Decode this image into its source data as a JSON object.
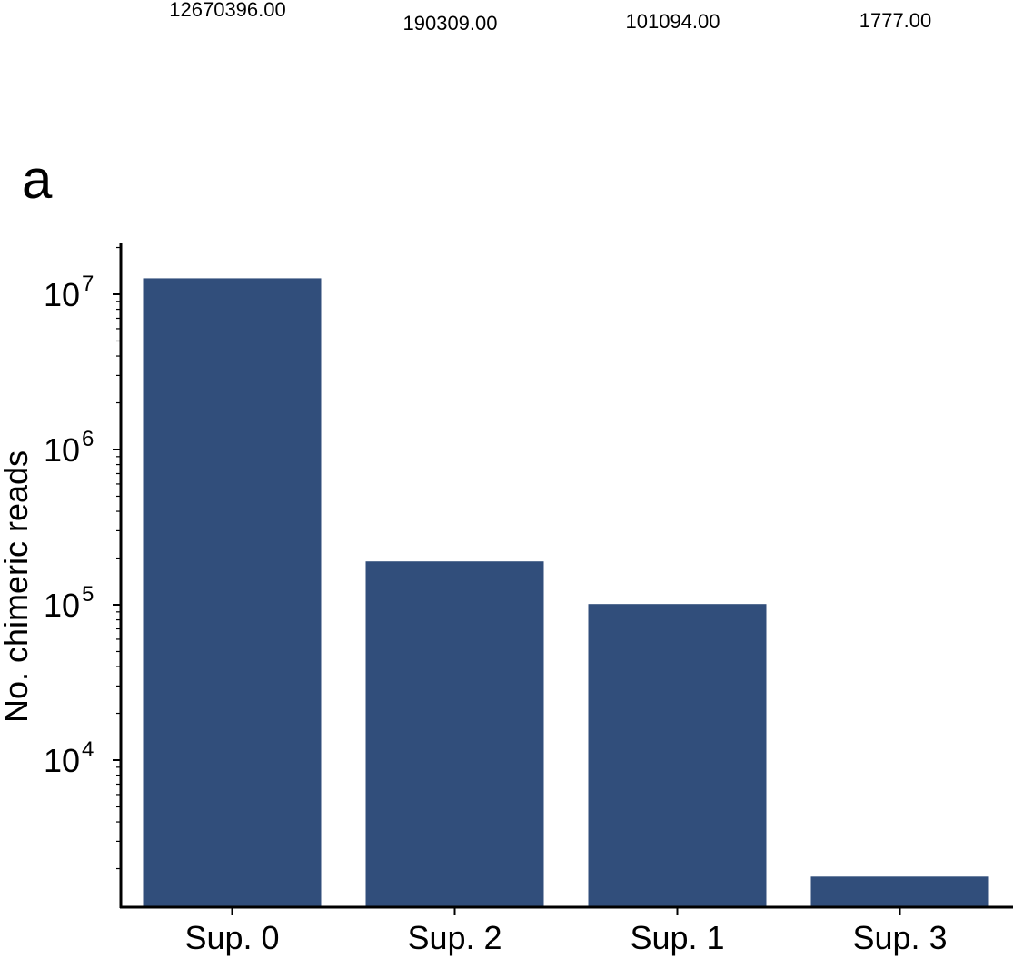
{
  "panel_label": "a",
  "chart_data": {
    "type": "bar",
    "title": "",
    "xlabel": "",
    "ylabel": "No. chimeric reads",
    "yscale": "log",
    "ylim": [
      1200,
      20000000
    ],
    "categories": [
      "Sup. 0",
      "Sup. 2",
      "Sup. 1",
      "Sup. 3"
    ],
    "values": [
      12670396,
      190309,
      101094,
      1777
    ],
    "data_labels": [
      "12670396.00",
      "190309.00",
      "101094.00",
      "1777.00"
    ],
    "y_major_ticks": [
      {
        "value": 10000,
        "base": "10",
        "exponent": "4"
      },
      {
        "value": 100000,
        "base": "10",
        "exponent": "5"
      },
      {
        "value": 1000000,
        "base": "10",
        "exponent": "6"
      },
      {
        "value": 10000000,
        "base": "10",
        "exponent": "7"
      }
    ],
    "bar_color": "#314e7b",
    "grid": false,
    "legend": "none"
  }
}
